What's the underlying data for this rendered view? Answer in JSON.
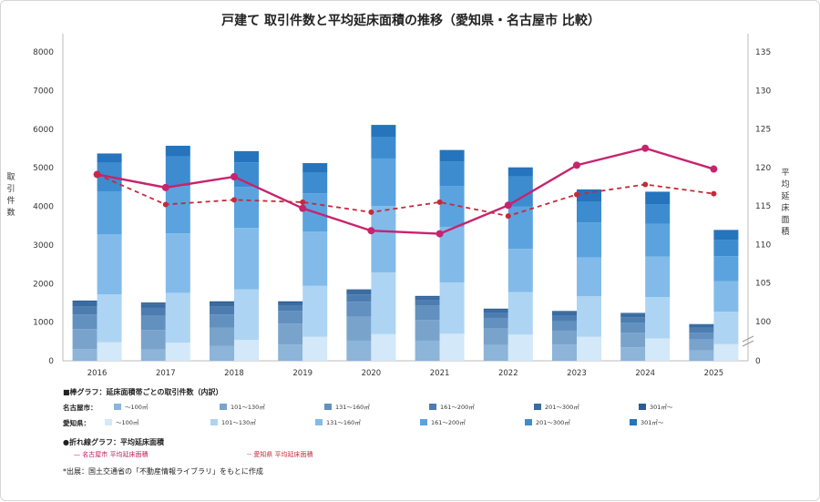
{
  "chart_data": {
    "type": "bar",
    "title": "戸建て 取引件数と平均延床面積の推移（愛知県・名古屋市 比較）",
    "categories": [
      "2016",
      "2017",
      "2018",
      "2019",
      "2020",
      "2021",
      "2022",
      "2023",
      "2024",
      "2025"
    ],
    "ylabel_left": "取引件数",
    "ylabel_right": "平均延床面積",
    "ylim_left": [
      0,
      8000
    ],
    "yticks_left": [
      "0",
      "1000",
      "2000",
      "3000",
      "4000",
      "5000",
      "6000",
      "7000",
      "8000"
    ],
    "ylim_right_ticks": [
      "100",
      "105",
      "110",
      "115",
      "120",
      "125",
      "130",
      "135"
    ],
    "yright_zero_label": "0",
    "grid": false,
    "bar_bands": [
      "～100㎡",
      "101～130㎡",
      "131～160㎡",
      "161～200㎡",
      "201～300㎡",
      "301㎡～"
    ],
    "nagoya_bars": {
      "name": "名古屋市",
      "stacks": [
        [
          300,
          520,
          380,
          200,
          120,
          40
        ],
        [
          290,
          510,
          370,
          200,
          110,
          30
        ],
        [
          380,
          480,
          340,
          200,
          110,
          30
        ],
        [
          420,
          540,
          330,
          130,
          90,
          30
        ],
        [
          520,
          620,
          390,
          190,
          100,
          30
        ],
        [
          520,
          540,
          370,
          150,
          70,
          30
        ],
        [
          410,
          440,
          260,
          140,
          70,
          30
        ],
        [
          420,
          360,
          240,
          150,
          90,
          30
        ],
        [
          350,
          380,
          260,
          140,
          80,
          30
        ],
        [
          270,
          280,
          180,
          130,
          70,
          20
        ]
      ]
    },
    "aichi_bars": {
      "name": "愛知県",
      "stacks": [
        [
          480,
          1240,
          1560,
          1110,
          740,
          240
        ],
        [
          470,
          1290,
          1540,
          1230,
          760,
          280
        ],
        [
          540,
          1310,
          1590,
          1060,
          640,
          290
        ],
        [
          620,
          1320,
          1410,
          990,
          530,
          250
        ],
        [
          690,
          1600,
          1720,
          1230,
          550,
          320
        ],
        [
          700,
          1330,
          1440,
          1060,
          630,
          300
        ],
        [
          680,
          1100,
          1120,
          1100,
          780,
          230
        ],
        [
          620,
          1050,
          1010,
          900,
          540,
          320
        ],
        [
          580,
          1070,
          1050,
          850,
          500,
          330
        ],
        [
          430,
          840,
          790,
          650,
          420,
          260
        ]
      ]
    },
    "series": [
      {
        "name": "名古屋市 平均延床面積",
        "style": "solid",
        "color": "#c8236e",
        "values": [
          119.1,
          117.4,
          118.8,
          114.7,
          111.8,
          111.4,
          115.1,
          120.3,
          122.5,
          119.8
        ]
      },
      {
        "name": "愛知県 平均延床面積",
        "style": "dashed",
        "color": "#c62a3a",
        "values": [
          119.1,
          115.2,
          115.8,
          115.5,
          114.2,
          115.5,
          113.7,
          116.5,
          117.8,
          116.6
        ]
      }
    ]
  },
  "legend": {
    "bar_heading": "■棒グラフ：延床面積帯ごとの取引件数（内訳）",
    "nagoya_label": "名古屋市：",
    "aichi_label": "愛知県：",
    "nagoya_items": [
      {
        "label": "～100㎡",
        "color": "#8db4d9"
      },
      {
        "label": "101～130㎡",
        "color": "#7aa3cc"
      },
      {
        "label": "131～160㎡",
        "color": "#6290bf"
      },
      {
        "label": "161～200㎡",
        "color": "#4d7db0"
      },
      {
        "label": "201～300㎡",
        "color": "#3a6ca1"
      },
      {
        "label": "301㎡～",
        "color": "#2c5d92"
      }
    ],
    "aichi_items": [
      {
        "label": "～100㎡",
        "color": "#d3e8f8"
      },
      {
        "label": "101～130㎡",
        "color": "#aed4f3"
      },
      {
        "label": "131～160㎡",
        "color": "#82bbea"
      },
      {
        "label": "161～200㎡",
        "color": "#5aa3df"
      },
      {
        "label": "201～300㎡",
        "color": "#3d8cd0"
      },
      {
        "label": "301㎡～",
        "color": "#2574bd"
      }
    ],
    "line_heading": "●折れ線グラフ：平均延床面積",
    "line_nagoya": "— 名古屋市 平均延床面積",
    "line_aichi": "-- 愛知県 平均延床面積"
  },
  "footnote": "*出展：国土交通省の「不動産情報ライブラリ」をもとに作成"
}
